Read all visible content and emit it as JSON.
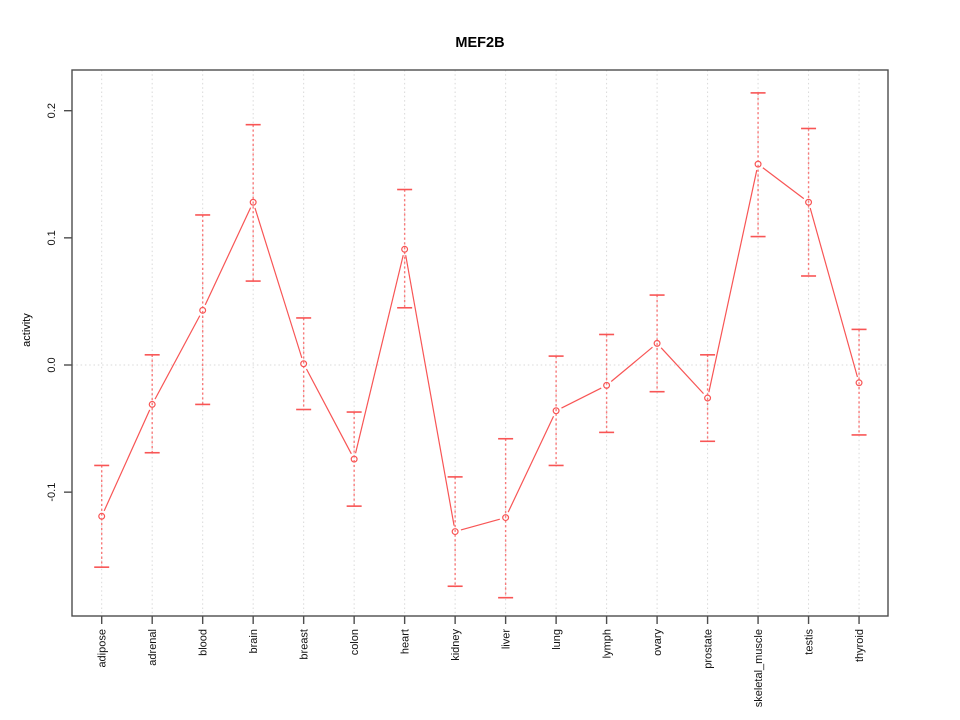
{
  "figure": {
    "title": "MEF2B"
  },
  "chart_data": {
    "type": "line",
    "title": "MEF2B",
    "xlabel": "",
    "ylabel": "activity",
    "legend": "none",
    "marker": "open-circle",
    "error_bars": true,
    "categories": [
      "adipose",
      "adrenal",
      "blood",
      "brain",
      "breast",
      "colon",
      "heart",
      "kidney",
      "liver",
      "lung",
      "lymph",
      "ovary",
      "prostate",
      "skeletal_muscle",
      "testis",
      "thyroid"
    ],
    "series": [
      {
        "name": "activity",
        "values": [
          -0.119,
          -0.031,
          0.043,
          0.128,
          0.001,
          -0.074,
          0.091,
          -0.131,
          -0.12,
          -0.036,
          -0.016,
          0.017,
          -0.026,
          0.158,
          0.128,
          -0.014
        ]
      }
    ],
    "error_upper": [
      -0.079,
      0.008,
      0.118,
      0.189,
      0.037,
      -0.037,
      0.138,
      -0.088,
      -0.058,
      0.007,
      0.024,
      0.055,
      0.008,
      0.214,
      0.186,
      0.028
    ],
    "error_lower": [
      -0.159,
      -0.069,
      -0.031,
      0.066,
      -0.035,
      -0.111,
      0.045,
      -0.174,
      -0.183,
      -0.079,
      -0.053,
      -0.021,
      -0.06,
      0.101,
      0.07,
      -0.055
    ],
    "yticks": [
      0.2,
      0.1,
      0.0,
      -0.1
    ],
    "ytick_labels": [
      "0.2",
      "0.1",
      "0.0",
      "-0.1"
    ],
    "ylim": [
      -0.1974,
      0.232
    ],
    "grid": {
      "vertical_dotted_at_categories": true,
      "horizontal_dotted_at_zero": true
    },
    "colors": {
      "series": "#f85555",
      "error_bar_line": "#f87a7a",
      "grid": "#d9d9d9",
      "axis": "#4d4d4d",
      "text": "#111111",
      "background": "#ffffff"
    }
  }
}
